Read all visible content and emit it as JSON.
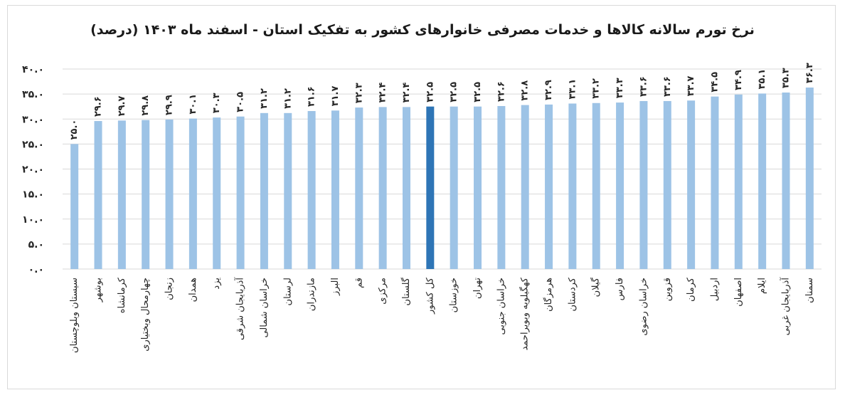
{
  "chart_data": {
    "type": "bar",
    "title": "نرخ تورم سالانه کالاها و خدمات مصرفی خانوارهای کشور به تفکیک استان - اسفند ماه ۱۴۰۳ (درصد)",
    "xlabel": "",
    "ylabel": "",
    "ylim": [
      0,
      40
    ],
    "y_ticks": [
      "۰.۰",
      "۵.۰",
      "۱۰.۰",
      "۱۵.۰",
      "۲۰.۰",
      "۲۵.۰",
      "۳۰.۰",
      "۳۵.۰",
      "۴۰.۰"
    ],
    "grid": true,
    "categories": [
      "سیستان وبلوچستان",
      "بوشهر",
      "کرمانشاه",
      "چهارمحال وبختیاری",
      "زنجان",
      "همدان",
      "یزد",
      "آذربایجان شرقی",
      "خراسان شمالی",
      "لرستان",
      "مازندران",
      "البرز",
      "قم",
      "مرکزی",
      "گلستان",
      "کل کشور",
      "خوزستان",
      "تهران",
      "خراسان جنوبی",
      "کهگیلویه وبویراحمد",
      "هرمزگان",
      "کردستان",
      "گیلان",
      "فارس",
      "خراسان رضوی",
      "قزوین",
      "کرمان",
      "اردبیل",
      "اصفهان",
      "ایلام",
      "آذربایجان غربی",
      "سمنان"
    ],
    "values": [
      25.0,
      29.6,
      29.7,
      29.8,
      29.9,
      30.1,
      30.3,
      30.5,
      31.2,
      31.2,
      31.6,
      31.7,
      32.3,
      32.4,
      32.4,
      32.5,
      32.5,
      32.5,
      32.6,
      32.8,
      32.9,
      33.1,
      33.2,
      33.3,
      33.6,
      33.6,
      33.7,
      34.5,
      34.9,
      35.1,
      35.3,
      36.3
    ],
    "data_labels": [
      "۲۵.۰",
      "۲۹.۶",
      "۲۹.۷",
      "۲۹.۸",
      "۲۹.۹",
      "۳۰.۱",
      "۳۰.۳",
      "۳۰.۵",
      "۳۱.۲",
      "۳۱.۲",
      "۳۱.۶",
      "۳۱.۷",
      "۳۲.۳",
      "۳۲.۴",
      "۳۲.۴",
      "۳۲.۵",
      "۳۲.۵",
      "۳۲.۵",
      "۳۲.۶",
      "۳۲.۸",
      "۳۲.۹",
      "۳۳.۱",
      "۳۳.۲",
      "۳۳.۳",
      "۳۳.۶",
      "۳۳.۶",
      "۳۳.۷",
      "۳۴.۵",
      "۳۴.۹",
      "۳۵.۱",
      "۳۵.۳",
      "۳۶.۳"
    ],
    "highlight_category": "کل کشور",
    "colors": {
      "bar": "#9dc3e6",
      "highlight": "#2e75b6",
      "grid": "#d9d9d9",
      "text": "#262626"
    }
  }
}
